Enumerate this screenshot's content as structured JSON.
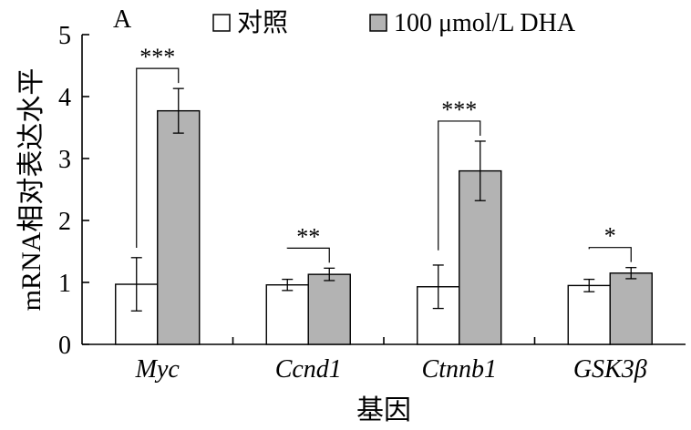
{
  "chart_data": {
    "type": "bar",
    "panel_label": "A",
    "categories": [
      "Myc",
      "Ccnd1",
      "Ctnnb1",
      "GSK3β"
    ],
    "series": [
      {
        "name": "对照",
        "color": "#ffffff",
        "values": [
          0.97,
          0.96,
          0.93,
          0.95
        ],
        "errors": [
          0.43,
          0.09,
          0.35,
          0.1
        ]
      },
      {
        "name": "100 μmol/L DHA",
        "color": "#b3b3b3",
        "values": [
          3.77,
          1.13,
          2.8,
          1.15
        ],
        "errors": [
          0.36,
          0.1,
          0.48,
          0.09
        ]
      }
    ],
    "significance": [
      "***",
      "**",
      "***",
      "*"
    ],
    "ylabel": "mRNA相对表达水平",
    "xlabel": "基因",
    "ylim": [
      0,
      5
    ],
    "yticks": [
      "0",
      "1",
      "2",
      "3",
      "4",
      "5"
    ],
    "grid": false,
    "legend_position": "top"
  }
}
